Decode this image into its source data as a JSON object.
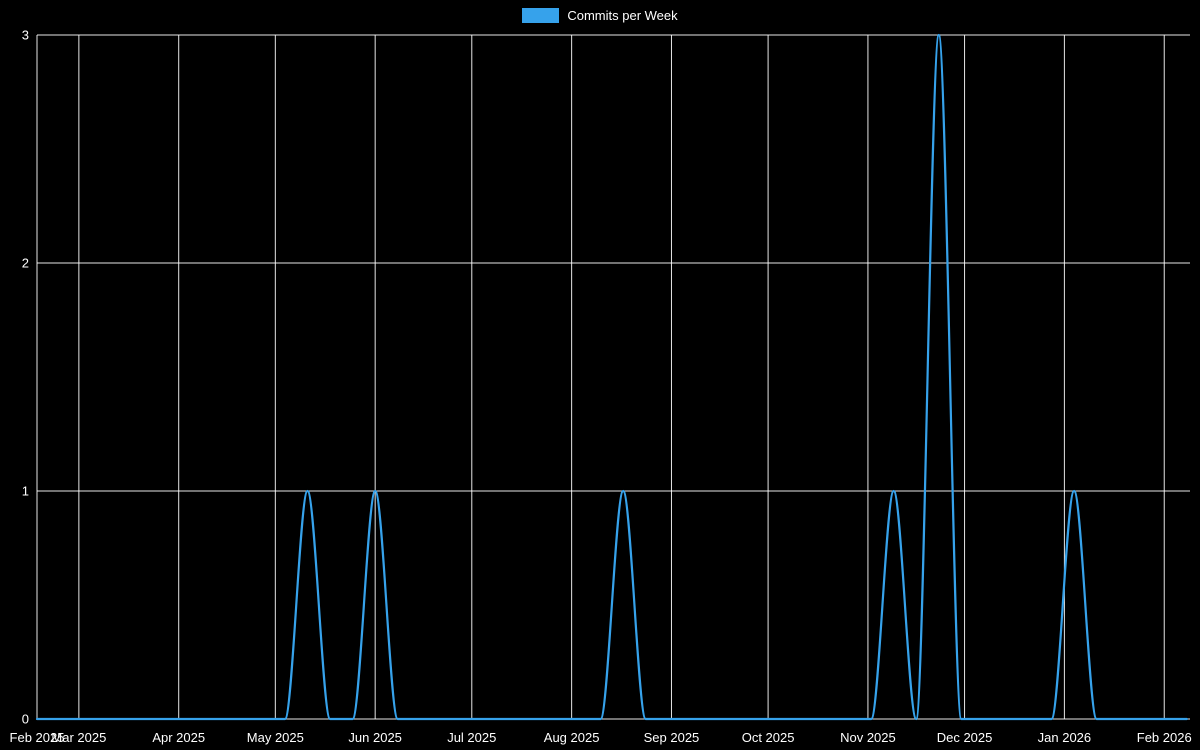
{
  "chart_data": {
    "type": "line",
    "legend_label": "Commits per Week",
    "legend_position": "top-center",
    "background_color": "#000000",
    "text_color": "#ffffff",
    "grid": true,
    "grid_color": "rgba(255,255,255,0.9)",
    "x_axis": {
      "min": "2025-02-16",
      "max": "2026-02-09",
      "ticks": [
        {
          "date": "2025-02-16",
          "label": "Feb 2025"
        },
        {
          "date": "2025-03-01",
          "label": "Mar 2025"
        },
        {
          "date": "2025-04-01",
          "label": "Apr 2025"
        },
        {
          "date": "2025-05-01",
          "label": "May 2025"
        },
        {
          "date": "2025-06-01",
          "label": "Jun 2025"
        },
        {
          "date": "2025-07-01",
          "label": "Jul 2025"
        },
        {
          "date": "2025-08-01",
          "label": "Aug 2025"
        },
        {
          "date": "2025-09-01",
          "label": "Sep 2025"
        },
        {
          "date": "2025-10-01",
          "label": "Oct 2025"
        },
        {
          "date": "2025-11-01",
          "label": "Nov 2025"
        },
        {
          "date": "2025-12-01",
          "label": "Dec 2025"
        },
        {
          "date": "2026-01-01",
          "label": "Jan 2026"
        },
        {
          "date": "2026-02-01",
          "label": "Feb 2026"
        }
      ]
    },
    "y_axis": {
      "min": 0,
      "max": 3,
      "ticks": [
        0,
        1,
        2,
        3
      ]
    },
    "series": [
      {
        "name": "Commits per Week",
        "color": "#36a2eb",
        "line_width": 2.2,
        "x": [
          "2025-02-16",
          "2025-02-23",
          "2025-03-02",
          "2025-03-09",
          "2025-03-16",
          "2025-03-23",
          "2025-03-30",
          "2025-04-06",
          "2025-04-13",
          "2025-04-20",
          "2025-04-27",
          "2025-05-04",
          "2025-05-11",
          "2025-05-18",
          "2025-05-25",
          "2025-06-01",
          "2025-06-08",
          "2025-06-15",
          "2025-06-22",
          "2025-06-29",
          "2025-07-06",
          "2025-07-13",
          "2025-07-20",
          "2025-07-27",
          "2025-08-03",
          "2025-08-10",
          "2025-08-17",
          "2025-08-24",
          "2025-08-31",
          "2025-09-07",
          "2025-09-14",
          "2025-09-21",
          "2025-09-28",
          "2025-10-05",
          "2025-10-12",
          "2025-10-19",
          "2025-10-26",
          "2025-11-02",
          "2025-11-09",
          "2025-11-16",
          "2025-11-23",
          "2025-11-30",
          "2025-12-07",
          "2025-12-14",
          "2025-12-21",
          "2025-12-28",
          "2026-01-04",
          "2026-01-11",
          "2026-01-18",
          "2026-01-25",
          "2026-02-01",
          "2026-02-08"
        ],
        "values": [
          0,
          0,
          0,
          0,
          0,
          0,
          0,
          0,
          0,
          0,
          0,
          0,
          1,
          0,
          0,
          1,
          0,
          0,
          0,
          0,
          0,
          0,
          0,
          0,
          0,
          0,
          1,
          0,
          0,
          0,
          0,
          0,
          0,
          0,
          0,
          0,
          0,
          0,
          1,
          0,
          3,
          0,
          0,
          0,
          0,
          0,
          1,
          0,
          0,
          0,
          0,
          0
        ]
      }
    ]
  }
}
